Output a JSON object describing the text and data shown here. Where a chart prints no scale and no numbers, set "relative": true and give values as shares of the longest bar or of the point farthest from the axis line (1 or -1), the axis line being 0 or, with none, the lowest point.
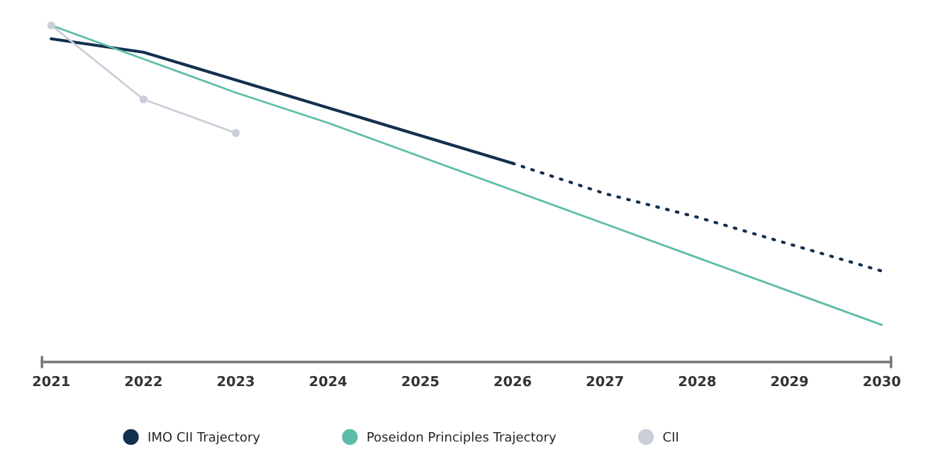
{
  "chart_data": {
    "type": "line",
    "relative": true,
    "categories": [
      "2021",
      "2022",
      "2023",
      "2024",
      "2025",
      "2026",
      "2027",
      "2028",
      "2029",
      "2030"
    ],
    "series": [
      {
        "name": "IMO CII Trajectory",
        "color": "#14304f",
        "values": [
          0.96,
          0.92,
          null,
          null,
          null,
          0.59,
          null,
          null,
          null,
          null
        ],
        "line_style": "solid",
        "marker": "none"
      },
      {
        "color": "#14304f",
        "values": [
          null,
          null,
          null,
          null,
          null,
          0.59,
          0.5,
          0.43,
          0.35,
          0.27
        ],
        "line_style": "dotted",
        "marker": "none"
      },
      {
        "name": "Poseidon Principles Trajectory",
        "color": "#5dbcaa",
        "values": [
          1.0,
          0.9,
          0.8,
          0.71,
          0.61,
          0.51,
          0.41,
          0.31,
          0.21,
          0.11
        ],
        "line_style": "solid",
        "marker": "none"
      },
      {
        "name": "CII",
        "color": "#c9ced8",
        "values": [
          1.0,
          0.78,
          0.68,
          null,
          null,
          null,
          null,
          null,
          null,
          null
        ],
        "line_style": "solid",
        "marker": "circle"
      }
    ],
    "legend": "bottom",
    "grid": false
  }
}
